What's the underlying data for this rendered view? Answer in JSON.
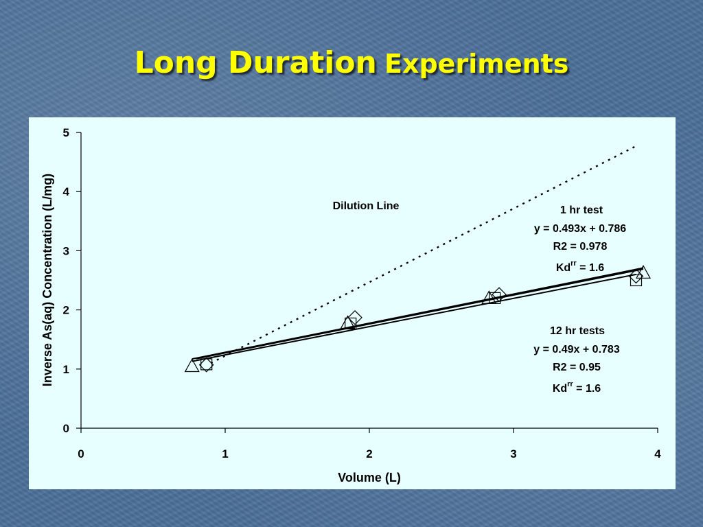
{
  "slide": {
    "title_part1": "Long Duration",
    "title_part2": "Experiments"
  },
  "colors": {
    "background": "#4a6e98",
    "title": "#ffff00",
    "plot_bg": "#e8ffff"
  },
  "chart_data": {
    "type": "scatter",
    "xlabel": "Volume (L)",
    "ylabel": "Inverse As(aq) Concentration (L/mg)",
    "xlim": [
      0,
      4
    ],
    "ylim": [
      0,
      5
    ],
    "x_ticks": [
      "0",
      "1",
      "2",
      "3",
      "4"
    ],
    "y_ticks": [
      "0",
      "1",
      "2",
      "3",
      "4",
      "5"
    ],
    "grid": false,
    "series": [
      {
        "marker": "triangle",
        "x": [
          0.77,
          1.85,
          2.83,
          3.9
        ],
        "y": [
          1.05,
          1.78,
          2.2,
          2.63
        ]
      },
      {
        "marker": "diamond",
        "x": [
          0.87,
          1.9,
          2.9,
          3.85
        ],
        "y": [
          1.07,
          1.87,
          2.26,
          2.57
        ]
      },
      {
        "marker": "square",
        "x": [
          0.87,
          1.87,
          2.87,
          3.85
        ],
        "y": [
          1.08,
          1.77,
          2.2,
          2.5
        ]
      }
    ],
    "trendlines": [
      {
        "x": [
          0.77,
          3.9
        ],
        "y": [
          1.17,
          2.71
        ]
      },
      {
        "x": [
          0.8,
          3.9
        ],
        "y": [
          1.175,
          2.69
        ]
      },
      {
        "x": [
          0.77,
          3.85
        ],
        "y": [
          1.13,
          2.6
        ]
      }
    ],
    "dilution_line": {
      "x": [
        0.9,
        3.85
      ],
      "y": [
        1.1,
        4.77
      ],
      "style": "dotted"
    },
    "annotations": {
      "dilution": "Dilution Line",
      "one_hr": {
        "title": "1 hr test",
        "equation": "y = 0.493x + 0.786",
        "r2": "R2 = 0.978",
        "kd_base": "Kd",
        "kd_sup": "rr",
        "kd_value": " = 1.6"
      },
      "twelve_hr": {
        "title": "12 hr tests",
        "equation": "y = 0.49x + 0.783",
        "r2": "R2 = 0.95",
        "kd_base": "Kd",
        "kd_sup": "rr",
        "kd_value": " = 1.6"
      }
    }
  }
}
